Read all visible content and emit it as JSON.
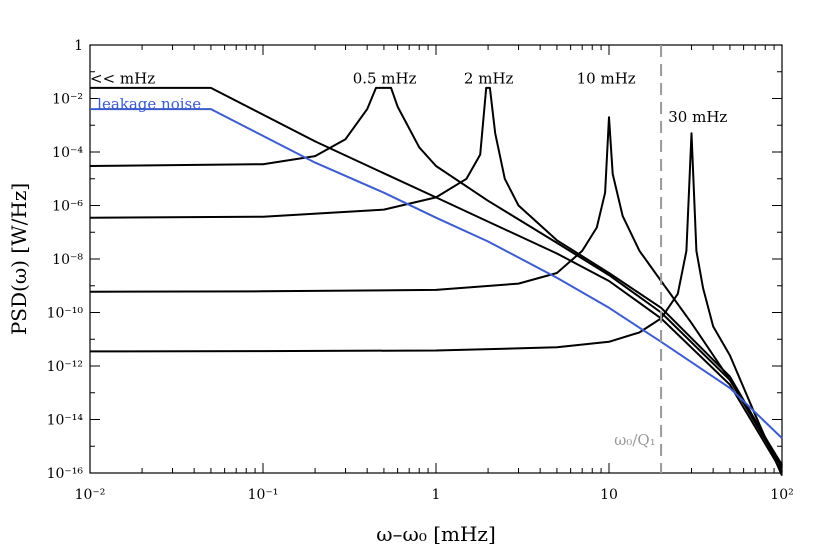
{
  "chart_data": {
    "type": "line",
    "xlabel": "ω–ω₀  [mHz]",
    "ylabel": "PSD(ω)  [W/Hz]",
    "xscale": "log",
    "yscale": "log",
    "xlim": [
      0.01,
      100
    ],
    "ylim": [
      1e-16,
      1
    ],
    "xticks": [
      {
        "value": 0.01,
        "label": "10⁻²"
      },
      {
        "value": 0.1,
        "label": "10⁻¹"
      },
      {
        "value": 1,
        "label": "1"
      },
      {
        "value": 10,
        "label": "10"
      },
      {
        "value": 100,
        "label": "10²"
      }
    ],
    "yticks": [
      {
        "value": 1,
        "label": "1"
      },
      {
        "value": 0.01,
        "label": "10⁻²"
      },
      {
        "value": 0.0001,
        "label": "10⁻⁴"
      },
      {
        "value": 1e-06,
        "label": "10⁻⁶"
      },
      {
        "value": 1e-08,
        "label": "10⁻⁸"
      },
      {
        "value": 1e-10,
        "label": "10⁻¹⁰"
      },
      {
        "value": 1e-12,
        "label": "10⁻¹²"
      },
      {
        "value": 1e-14,
        "label": "10⁻¹⁴"
      },
      {
        "value": 1e-16,
        "label": "10⁻¹⁶"
      }
    ],
    "grid": false,
    "legend": "none",
    "series": [
      {
        "name": "<< mHz",
        "color": "#000000",
        "label_at": [
          0.01,
          0.09
        ],
        "x": [
          0.01,
          0.05,
          0.1,
          0.2,
          0.5,
          1,
          2,
          5,
          10,
          20,
          50,
          100
        ],
        "y": [
          0.025,
          0.025,
          0.0025,
          0.00025,
          1.6e-05,
          2e-06,
          2.5e-07,
          1.6e-08,
          1.5e-09,
          6e-11,
          2e-13,
          1.1e-16
        ]
      },
      {
        "name": "0.5 mHz",
        "color": "#000000",
        "label_at": [
          0.33,
          0.09
        ],
        "x": [
          0.01,
          0.1,
          0.2,
          0.3,
          0.4,
          0.45,
          0.55,
          0.6,
          0.8,
          1,
          2,
          5,
          10,
          20,
          50,
          100
        ],
        "y": [
          3e-05,
          3.5e-05,
          7e-05,
          0.0003,
          0.004,
          0.025,
          0.025,
          0.005,
          0.00015,
          3e-05,
          1.5e-06,
          4e-08,
          2.5e-09,
          1e-10,
          3e-13,
          1.5e-16
        ]
      },
      {
        "name": "2 mHz",
        "color": "#000000",
        "label_at": [
          1.45,
          0.09
        ],
        "x": [
          0.01,
          0.1,
          0.5,
          1,
          1.5,
          1.8,
          1.95,
          2.05,
          2.2,
          2.5,
          3,
          5,
          10,
          20,
          50,
          100
        ],
        "y": [
          3.5e-07,
          3.8e-07,
          7e-07,
          2e-06,
          1e-05,
          8e-05,
          0.025,
          0.025,
          0.0005,
          1e-05,
          1e-06,
          5e-08,
          3e-09,
          1.5e-10,
          4e-13,
          1.8e-16
        ]
      },
      {
        "name": "10 mHz",
        "color": "#000000",
        "label_at": [
          6.5,
          0.09
        ],
        "x": [
          0.01,
          0.1,
          1,
          3,
          5,
          7,
          8.5,
          9.5,
          10,
          10.5,
          12,
          15,
          20,
          30,
          50,
          100
        ],
        "y": [
          6e-10,
          6.2e-10,
          7e-10,
          1.2e-09,
          3e-09,
          2e-08,
          1.5e-07,
          3e-06,
          0.002,
          1.5e-05,
          4e-07,
          2e-08,
          1.5e-09,
          4e-11,
          3e-13,
          2e-16
        ]
      },
      {
        "name": "30 mHz",
        "color": "#000000",
        "label_at": [
          22,
          0.18
        ],
        "x": [
          0.01,
          0.1,
          1,
          5,
          10,
          15,
          20,
          25,
          28,
          30,
          32,
          35,
          40,
          50,
          70,
          100
        ],
        "y": [
          3.5e-12,
          3.6e-12,
          3.8e-12,
          5e-12,
          8e-12,
          1.8e-11,
          6e-11,
          5e-10,
          2e-08,
          0.0005,
          2e-08,
          8e-10,
          3e-11,
          2.5e-12,
          1.5e-14,
          8e-17
        ]
      },
      {
        "name": "leakage noise",
        "color": "#3c5ccf",
        "label_at": [
          0.011,
          0.15
        ],
        "x": [
          0.01,
          0.05,
          0.1,
          0.2,
          0.5,
          1,
          2,
          5,
          10,
          20,
          50,
          100
        ],
        "y": [
          0.004,
          0.004,
          0.0004,
          4e-05,
          3e-06,
          3.5e-07,
          4.5e-08,
          2e-09,
          1.5e-10,
          8e-12,
          1.5e-13,
          2e-15
        ]
      }
    ],
    "annotations": [
      {
        "text": "ω₀/Q₁",
        "x": 20,
        "style": "dashed-vertical",
        "color": "#999999",
        "label_at": [
          10.7,
          0.065
        ]
      }
    ]
  }
}
